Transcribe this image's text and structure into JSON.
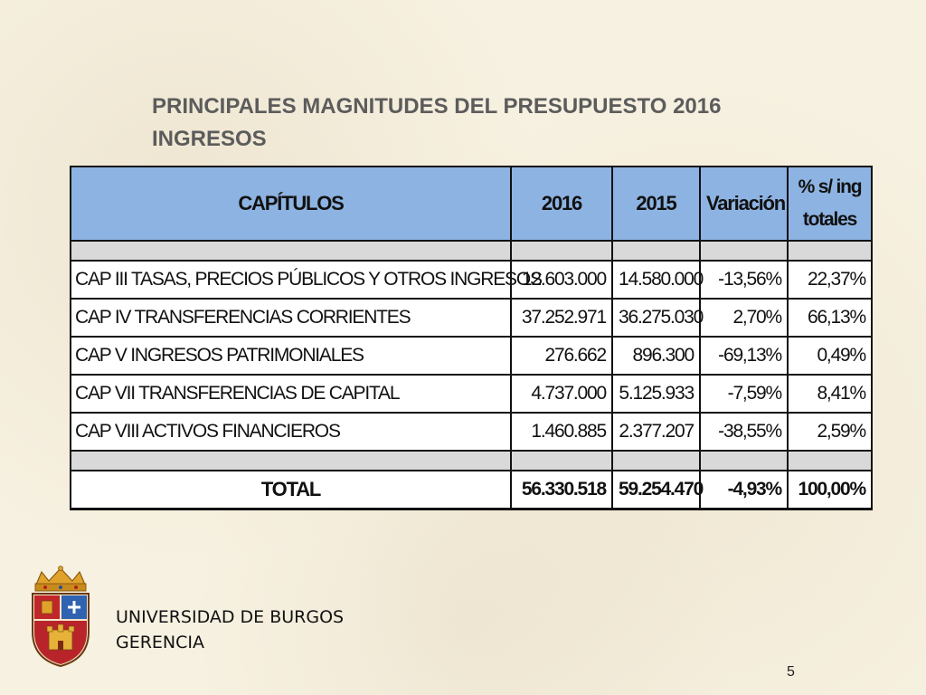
{
  "slide": {
    "title_line1": "PRINCIPALES MAGNITUDES DEL PRESUPUESTO 2016",
    "title_line2": "INGRESOS",
    "page_number": "5"
  },
  "table": {
    "headers": {
      "capitulos": "CAPÍTULOS",
      "y2016": "2016",
      "y2015": "2015",
      "variacion": "Variación",
      "pct_line1": "% s/ ing",
      "pct_line2": "totales"
    },
    "rows": [
      {
        "label": "CAP III TASAS, PRECIOS PÚBLICOS Y OTROS INGRESOS",
        "v2016": "12.603.000",
        "v2015": "14.580.000",
        "variacion": "-13,56%",
        "pct": "22,37%"
      },
      {
        "label": "CAP IV TRANSFERENCIAS CORRIENTES",
        "v2016": "37.252.971",
        "v2015": "36.275.030",
        "variacion": "2,70%",
        "pct": "66,13%"
      },
      {
        "label": "CAP V INGRESOS PATRIMONIALES",
        "v2016": "276.662",
        "v2015": "896.300",
        "variacion": "-69,13%",
        "pct": "0,49%"
      },
      {
        "label": "CAP VII TRANSFERENCIAS DE CAPITAL",
        "v2016": "4.737.000",
        "v2015": "5.125.933",
        "variacion": "-7,59%",
        "pct": "8,41%"
      },
      {
        "label": "CAP VIII ACTIVOS FINANCIEROS",
        "v2016": "1.460.885",
        "v2015": "2.377.207",
        "variacion": "-38,55%",
        "pct": "2,59%"
      }
    ],
    "total": {
      "label": "TOTAL",
      "v2016": "56.330.518",
      "v2015": "59.254.470",
      "variacion": "-4,93%",
      "pct": "100,00%"
    }
  },
  "footer": {
    "line1": "UNIVERSIDAD DE BURGOS",
    "line2": "GERENCIA",
    "logo_icon": "university-coat-of-arms"
  },
  "colors": {
    "header_fill": "#8db3e2",
    "spacer_fill": "#d9d9d9",
    "background": "#f7f1e1",
    "title_text": "#5c5c5c"
  }
}
